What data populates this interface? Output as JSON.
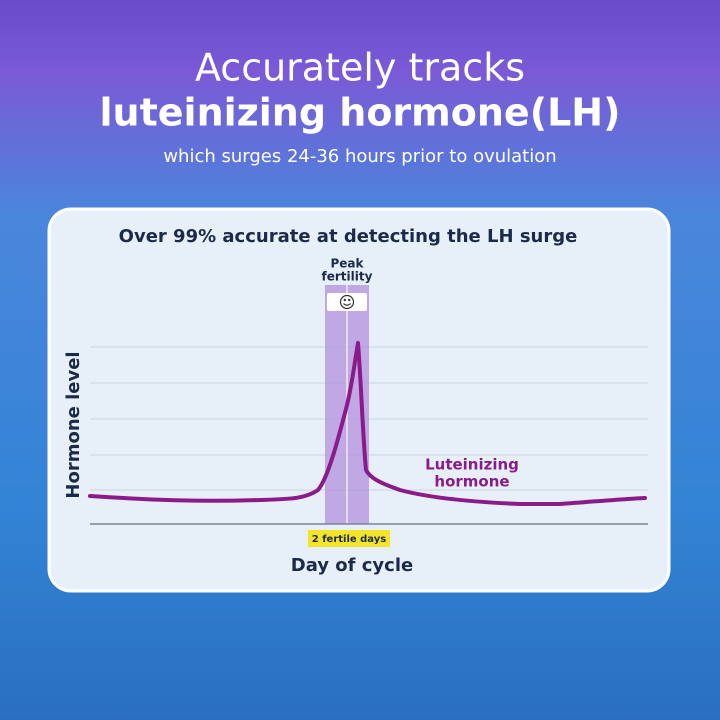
{
  "header": {
    "title": "Accurately tracks",
    "title_bold": "luteinizing hormone(LH)",
    "subtitle": "which surges 24-36 hours prior to ovulation"
  },
  "card": {
    "title": "Over 99% accurate at detecting the LH surge",
    "peak_label": [
      "Peak",
      "fertility"
    ],
    "y_label": "Hormone level",
    "x_label": "Day of cycle",
    "fertile_badge": "2 fertile days",
    "curve_label": [
      "Luteinizing",
      "hormone"
    ]
  }
}
